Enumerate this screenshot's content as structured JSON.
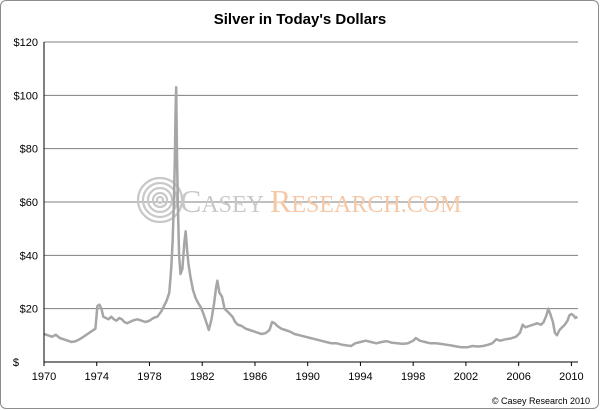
{
  "chart_data": {
    "type": "line",
    "title": "Silver in Today's Dollars",
    "xlabel": "",
    "ylabel": "",
    "xlim": [
      1970,
      2010.5
    ],
    "ylim": [
      0,
      120
    ],
    "x_ticks": [
      "1970",
      "1974",
      "1978",
      "1982",
      "1986",
      "1990",
      "1994",
      "1998",
      "2002",
      "2006",
      "2010"
    ],
    "y_ticks": [
      "$",
      "$20",
      "$40",
      "$60",
      "$80",
      "$100",
      "$120"
    ],
    "grid": "horizontal",
    "legend": "none",
    "series": [
      {
        "color": "#a6a6a6",
        "points": [
          [
            1970.0,
            10.5
          ],
          [
            1970.3,
            10.0
          ],
          [
            1970.6,
            9.5
          ],
          [
            1970.9,
            10.2
          ],
          [
            1971.2,
            9.0
          ],
          [
            1971.5,
            8.5
          ],
          [
            1971.8,
            8.0
          ],
          [
            1972.1,
            7.5
          ],
          [
            1972.4,
            7.8
          ],
          [
            1972.7,
            8.5
          ],
          [
            1973.0,
            9.5
          ],
          [
            1973.3,
            10.5
          ],
          [
            1973.6,
            11.5
          ],
          [
            1973.9,
            12.5
          ],
          [
            1974.05,
            21.0
          ],
          [
            1974.2,
            21.5
          ],
          [
            1974.35,
            20.0
          ],
          [
            1974.5,
            17.0
          ],
          [
            1974.7,
            16.5
          ],
          [
            1974.9,
            16.0
          ],
          [
            1975.1,
            17.0
          ],
          [
            1975.3,
            16.0
          ],
          [
            1975.5,
            15.5
          ],
          [
            1975.7,
            16.5
          ],
          [
            1975.9,
            16.0
          ],
          [
            1976.1,
            15.0
          ],
          [
            1976.3,
            14.5
          ],
          [
            1976.5,
            15.0
          ],
          [
            1976.7,
            15.5
          ],
          [
            1976.9,
            15.8
          ],
          [
            1977.1,
            16.0
          ],
          [
            1977.4,
            15.5
          ],
          [
            1977.7,
            15.0
          ],
          [
            1978.0,
            15.5
          ],
          [
            1978.3,
            16.5
          ],
          [
            1978.6,
            17.0
          ],
          [
            1978.9,
            19.0
          ],
          [
            1979.1,
            21.0
          ],
          [
            1979.3,
            23.0
          ],
          [
            1979.5,
            26.0
          ],
          [
            1979.65,
            35.0
          ],
          [
            1979.75,
            45.0
          ],
          [
            1979.85,
            60.0
          ],
          [
            1979.92,
            75.0
          ],
          [
            1979.98,
            95.0
          ],
          [
            1980.03,
            103.0
          ],
          [
            1980.08,
            80.0
          ],
          [
            1980.15,
            60.0
          ],
          [
            1980.25,
            40.0
          ],
          [
            1980.35,
            33.0
          ],
          [
            1980.5,
            35.0
          ],
          [
            1980.65,
            45.0
          ],
          [
            1980.75,
            49.0
          ],
          [
            1980.85,
            42.0
          ],
          [
            1980.95,
            37.0
          ],
          [
            1981.1,
            32.0
          ],
          [
            1981.3,
            27.0
          ],
          [
            1981.5,
            24.0
          ],
          [
            1981.7,
            22.0
          ],
          [
            1981.9,
            20.5
          ],
          [
            1982.1,
            18.0
          ],
          [
            1982.3,
            15.0
          ],
          [
            1982.5,
            12.0
          ],
          [
            1982.7,
            16.0
          ],
          [
            1982.9,
            22.0
          ],
          [
            1983.05,
            28.0
          ],
          [
            1983.15,
            30.5
          ],
          [
            1983.3,
            26.0
          ],
          [
            1983.5,
            24.5
          ],
          [
            1983.7,
            20.0
          ],
          [
            1983.9,
            19.0
          ],
          [
            1984.1,
            18.0
          ],
          [
            1984.3,
            17.0
          ],
          [
            1984.5,
            15.0
          ],
          [
            1984.7,
            14.0
          ],
          [
            1985.0,
            13.5
          ],
          [
            1985.3,
            12.5
          ],
          [
            1985.6,
            12.0
          ],
          [
            1985.9,
            11.5
          ],
          [
            1986.2,
            11.0
          ],
          [
            1986.5,
            10.5
          ],
          [
            1986.8,
            10.8
          ],
          [
            1987.1,
            12.0
          ],
          [
            1987.3,
            15.0
          ],
          [
            1987.5,
            14.5
          ],
          [
            1987.7,
            13.5
          ],
          [
            1988.0,
            12.5
          ],
          [
            1988.3,
            12.0
          ],
          [
            1988.6,
            11.5
          ],
          [
            1989.0,
            10.5
          ],
          [
            1989.4,
            10.0
          ],
          [
            1989.8,
            9.5
          ],
          [
            1990.2,
            9.0
          ],
          [
            1990.6,
            8.5
          ],
          [
            1991.0,
            8.0
          ],
          [
            1991.4,
            7.5
          ],
          [
            1991.8,
            7.0
          ],
          [
            1992.2,
            7.0
          ],
          [
            1992.6,
            6.5
          ],
          [
            1993.0,
            6.2
          ],
          [
            1993.3,
            6.0
          ],
          [
            1993.6,
            7.0
          ],
          [
            1994.0,
            7.5
          ],
          [
            1994.4,
            8.0
          ],
          [
            1994.8,
            7.5
          ],
          [
            1995.2,
            7.0
          ],
          [
            1995.6,
            7.5
          ],
          [
            1996.0,
            7.8
          ],
          [
            1996.4,
            7.2
          ],
          [
            1996.8,
            7.0
          ],
          [
            1997.2,
            6.8
          ],
          [
            1997.6,
            7.0
          ],
          [
            1998.0,
            8.0
          ],
          [
            1998.2,
            9.0
          ],
          [
            1998.5,
            8.0
          ],
          [
            1998.9,
            7.5
          ],
          [
            1999.3,
            7.0
          ],
          [
            1999.7,
            7.0
          ],
          [
            2000.1,
            6.8
          ],
          [
            2000.5,
            6.5
          ],
          [
            2000.9,
            6.2
          ],
          [
            2001.3,
            5.8
          ],
          [
            2001.7,
            5.5
          ],
          [
            2002.1,
            5.5
          ],
          [
            2002.5,
            6.0
          ],
          [
            2002.9,
            5.8
          ],
          [
            2003.3,
            6.0
          ],
          [
            2003.7,
            6.5
          ],
          [
            2004.0,
            7.0
          ],
          [
            2004.3,
            8.5
          ],
          [
            2004.6,
            8.0
          ],
          [
            2005.0,
            8.5
          ],
          [
            2005.4,
            8.8
          ],
          [
            2005.8,
            9.5
          ],
          [
            2006.1,
            11.0
          ],
          [
            2006.3,
            14.0
          ],
          [
            2006.5,
            13.0
          ],
          [
            2006.8,
            13.5
          ],
          [
            2007.1,
            14.0
          ],
          [
            2007.4,
            14.5
          ],
          [
            2007.7,
            14.0
          ],
          [
            2007.9,
            15.0
          ],
          [
            2008.1,
            17.5
          ],
          [
            2008.25,
            20.0
          ],
          [
            2008.4,
            18.0
          ],
          [
            2008.6,
            15.0
          ],
          [
            2008.75,
            11.0
          ],
          [
            2008.9,
            10.0
          ],
          [
            2009.1,
            12.0
          ],
          [
            2009.3,
            13.0
          ],
          [
            2009.5,
            14.0
          ],
          [
            2009.7,
            15.5
          ],
          [
            2009.85,
            17.5
          ],
          [
            2010.0,
            18.0
          ],
          [
            2010.15,
            17.5
          ],
          [
            2010.3,
            16.5
          ],
          [
            2010.45,
            17.0
          ]
        ]
      }
    ]
  },
  "watermark": {
    "brand_c": "C",
    "brand_asey": "ASEY",
    "brand_r": "R",
    "brand_esearch": "ESEARCH.COM",
    "gray": "#c8c8c8",
    "orange": "#f5c8a8",
    "logo": "concentric-circles-logo"
  },
  "copyright": "© Casey Research 2010",
  "colors": {
    "line": "#a6a6a6",
    "grid": "#7f7f7f",
    "axis": "#000000"
  }
}
